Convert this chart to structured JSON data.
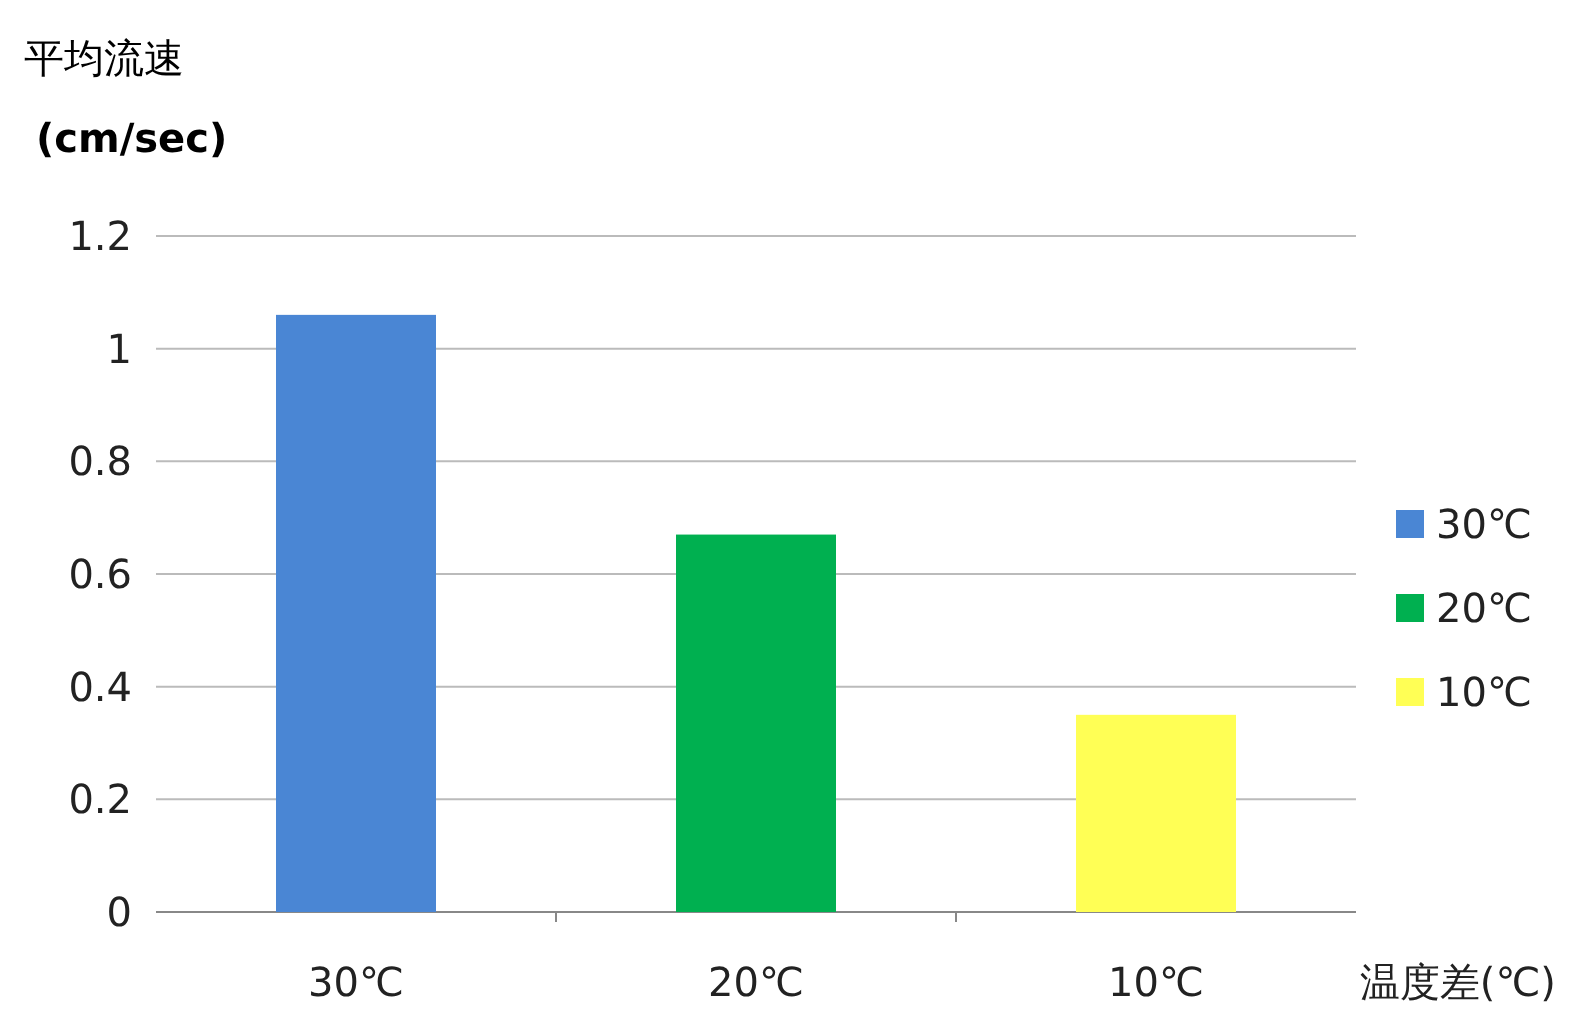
{
  "chart_data": {
    "type": "bar",
    "ylabel": "平均流速\n(cm/sec)",
    "xlabel": "温度差(℃)",
    "categories": [
      "30℃",
      "20℃",
      "10℃"
    ],
    "series": [
      {
        "name": "30℃",
        "color": "#4a86d4",
        "values": [
          1.06,
          null,
          null
        ]
      },
      {
        "name": "20℃",
        "color": "#00b050",
        "values": [
          null,
          0.67,
          null
        ]
      },
      {
        "name": "10℃",
        "color": "#ffff55",
        "values": [
          null,
          null,
          0.35
        ]
      }
    ],
    "stacked": true,
    "ylim": [
      0,
      1.2
    ],
    "yticks": [
      0,
      0.2,
      0.4,
      0.6,
      0.8,
      1,
      1.2
    ],
    "grid": "y",
    "legend": "right"
  }
}
